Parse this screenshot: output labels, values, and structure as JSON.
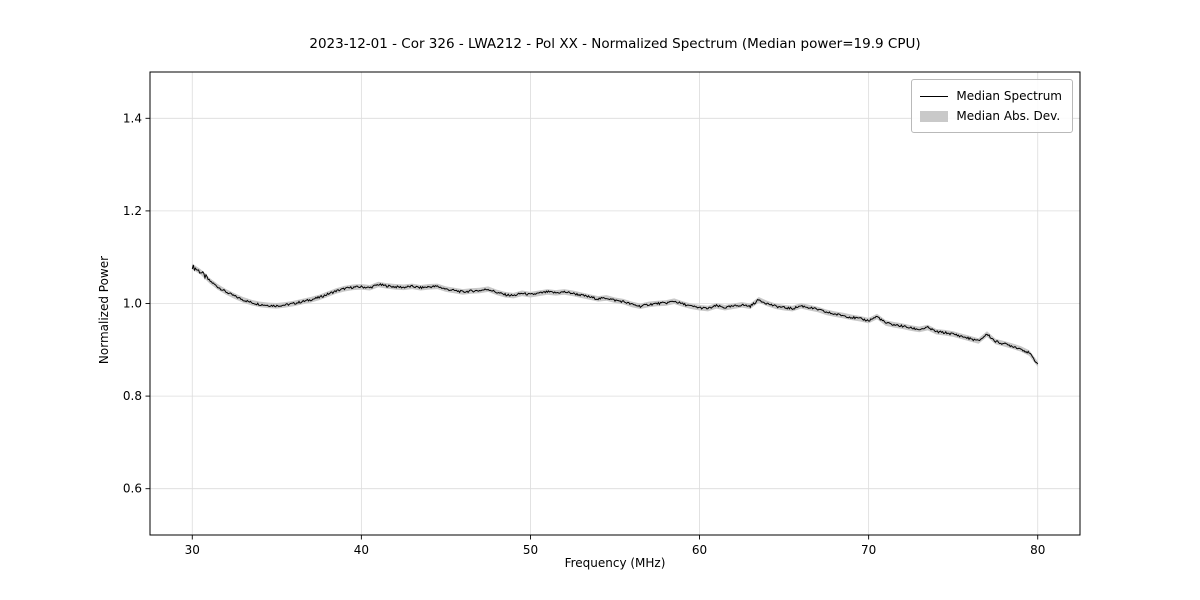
{
  "chart_data": {
    "type": "line",
    "title": "2023-12-01 - Cor 326 - LWA212 - Pol XX - Normalized Spectrum (Median power=19.9 CPU)",
    "xlabel": "Frequency (MHz)",
    "ylabel": "Normalized Power",
    "xlim": [
      27.5,
      82.5
    ],
    "ylim": [
      0.5,
      1.5
    ],
    "xticks": [
      30,
      40,
      50,
      60,
      70,
      80
    ],
    "yticks": [
      0.6,
      0.8,
      1.0,
      1.2,
      1.4
    ],
    "grid": true,
    "legend": {
      "position": "upper right",
      "entries": [
        {
          "label": "Median Spectrum",
          "type": "line",
          "color": "#000000"
        },
        {
          "label": "Median Abs. Dev.",
          "type": "band",
          "color": "#c9c9c9"
        }
      ]
    },
    "series": [
      {
        "name": "Median Spectrum",
        "x_start": 30.0,
        "x_step": 0.5,
        "y": [
          1.08,
          1.068,
          1.05,
          1.036,
          1.025,
          1.016,
          1.008,
          1.002,
          0.998,
          0.996,
          0.995,
          0.997,
          1.0,
          1.004,
          1.008,
          1.013,
          1.02,
          1.027,
          1.032,
          1.035,
          1.036,
          1.034,
          1.041,
          1.038,
          1.036,
          1.035,
          1.037,
          1.034,
          1.036,
          1.037,
          1.031,
          1.028,
          1.025,
          1.027,
          1.028,
          1.031,
          1.024,
          1.019,
          1.017,
          1.022,
          1.019,
          1.022,
          1.025,
          1.023,
          1.025,
          1.022,
          1.018,
          1.014,
          1.01,
          1.012,
          1.007,
          1.004,
          0.998,
          0.994,
          0.998,
          1.0,
          1.001,
          1.005,
          0.999,
          0.994,
          0.991,
          0.989,
          0.995,
          0.991,
          0.994,
          0.997,
          0.994,
          1.008,
          1.0,
          0.994,
          0.991,
          0.989,
          0.995,
          0.991,
          0.987,
          0.981,
          0.977,
          0.974,
          0.97,
          0.967,
          0.963,
          0.972,
          0.958,
          0.954,
          0.951,
          0.947,
          0.944,
          0.948,
          0.939,
          0.937,
          0.934,
          0.929,
          0.924,
          0.919,
          0.934,
          0.918,
          0.913,
          0.908,
          0.902,
          0.893,
          0.869
        ]
      }
    ],
    "mad_halfwidth": 0.006,
    "noise_amplitude": 0.0025,
    "colors": {
      "line": "#000000",
      "band": "#c9c9c9",
      "grid": "#dcdcdc",
      "axes": "#000000",
      "background": "#ffffff"
    }
  }
}
